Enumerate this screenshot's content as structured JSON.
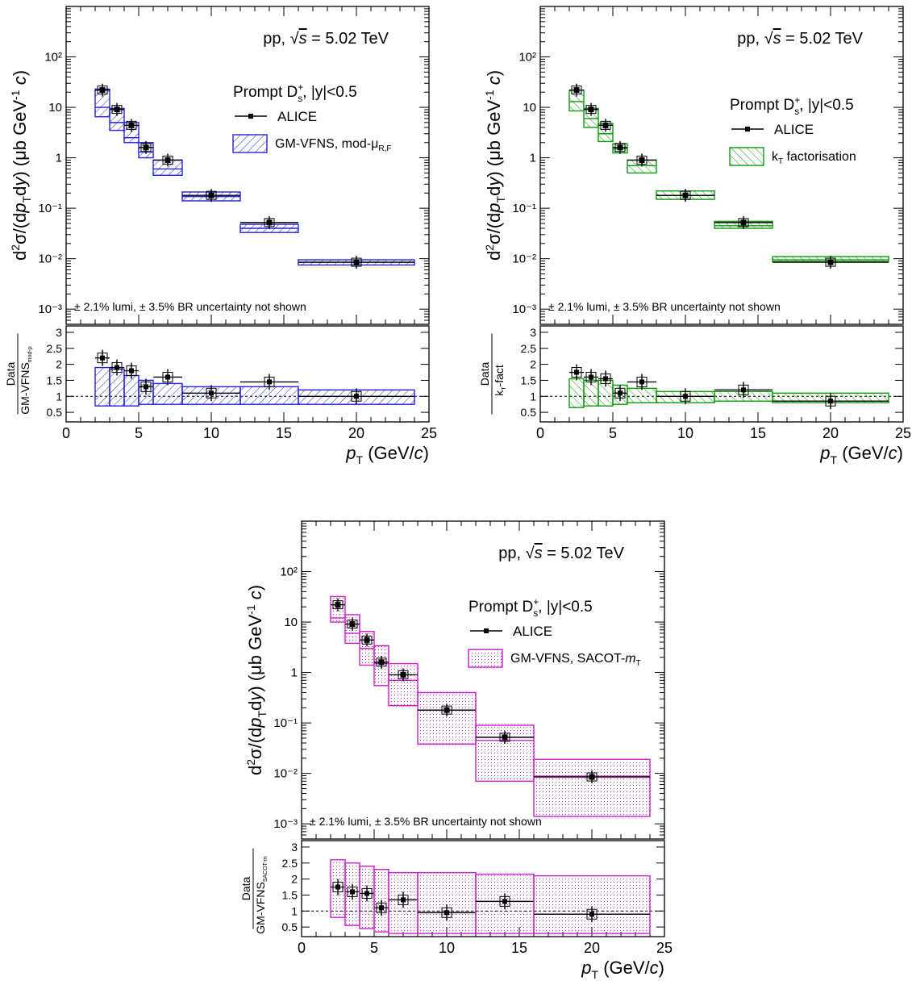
{
  "panels": [
    {
      "energy_label": "pp,",
      "energy_value": "= 5.02 TeV",
      "legend_title": "Prompt D",
      "legend_title_suffix": ", |y|<0.5",
      "data_label": "ALICE",
      "model_label": "GM-VFNS, mod-μ",
      "model_label_sub": "R,F",
      "note": "± 2.1% lumi, ± 3.5% BR uncertainty not shown",
      "ratio_num": "Data",
      "ratio_den": "GM-VFNS",
      "ratio_den_sub": "mod-μ",
      "color": "#2323d6",
      "fill": "hatch"
    },
    {
      "energy_label": "pp,",
      "energy_value": "= 5.02 TeV",
      "legend_title": "Prompt D",
      "legend_title_suffix": ", |y|<0.5",
      "data_label": "ALICE",
      "model_label": "k",
      "model_label_sub": "T",
      "model_label_rest": "factorisation",
      "note": "± 2.1% lumi, ± 3.5% BR uncertainty not shown",
      "ratio_num": "Data",
      "ratio_den": "k",
      "ratio_den_sub": "T",
      "ratio_den_rest": "-fact",
      "color": "#0e9a0e",
      "fill": "hatch2"
    },
    {
      "energy_label": "pp,",
      "energy_value": "= 5.02 TeV",
      "legend_title": "Prompt D",
      "legend_title_suffix": ", |y|<0.5",
      "data_label": "ALICE",
      "model_label": "GM-VFNS, SACOT-",
      "model_label_sub": "T",
      "model_label_rest": "m",
      "note": "± 2.1% lumi, ± 3.5% BR uncertainty not shown",
      "ratio_num": "Data",
      "ratio_den": "GM-VFNS",
      "ratio_den_sub": "SACOT-m",
      "color": "#cc1fcc",
      "fill": "dots"
    }
  ],
  "axes": {
    "ylabel": "d²σ/(dp_T dy) (μb GeV⁻¹ c)",
    "xlabel": "(GeV/c)",
    "xticks": [
      "0",
      "5",
      "10",
      "15",
      "20",
      "25"
    ],
    "yticks": [
      "10⁻³",
      "10⁻²",
      "10⁻¹",
      "1",
      "10",
      "10²"
    ],
    "ratio_ticks": [
      "0.5",
      "1",
      "1.5",
      "2",
      "2.5",
      "3"
    ]
  },
  "chart_data": [
    {
      "type": "bar",
      "title": "",
      "x_bins": [
        [
          2,
          3
        ],
        [
          3,
          4
        ],
        [
          4,
          5
        ],
        [
          5,
          6
        ],
        [
          6,
          8
        ],
        [
          8,
          12
        ],
        [
          12,
          16
        ],
        [
          16,
          24
        ]
      ],
      "series": [
        {
          "name": "ALICE",
          "values": [
            22,
            9.1,
            4.4,
            1.6,
            0.9,
            0.18,
            0.052,
            0.0085
          ]
        },
        {
          "name": "GM-VFNS, mod-μR,F",
          "low": [
            6.5,
            3.5,
            2.0,
            1.0,
            0.45,
            0.14,
            0.033,
            0.0075
          ],
          "high": [
            23,
            9.5,
            5.0,
            2.0,
            0.9,
            0.21,
            0.048,
            0.0095
          ],
          "central": [
            10,
            5,
            2.5,
            1.3,
            0.6,
            0.17,
            0.04,
            0.0085
          ]
        }
      ],
      "ratio": {
        "data": [
          2.2,
          1.9,
          1.8,
          1.3,
          1.6,
          1.1,
          1.45,
          1.0
        ],
        "model_low": [
          0.7,
          0.7,
          0.7,
          0.75,
          0.75,
          0.75,
          0.75,
          0.75
        ],
        "model_high": [
          1.9,
          1.85,
          1.65,
          1.5,
          1.4,
          1.3,
          1.3,
          1.2
        ]
      },
      "ylim": [
        0.0005,
        1000
      ],
      "xlim": [
        0,
        25
      ],
      "ratio_ylim": [
        0.2,
        3.2
      ],
      "ylog": true
    },
    {
      "type": "bar",
      "title": "",
      "x_bins": [
        [
          2,
          3
        ],
        [
          3,
          4
        ],
        [
          4,
          5
        ],
        [
          5,
          6
        ],
        [
          6,
          8
        ],
        [
          8,
          12
        ],
        [
          12,
          16
        ],
        [
          16,
          24
        ]
      ],
      "series": [
        {
          "name": "ALICE",
          "values": [
            22,
            9.1,
            4.4,
            1.6,
            0.9,
            0.18,
            0.052,
            0.0085
          ]
        },
        {
          "name": "kT factorisation",
          "low": [
            8.5,
            4,
            2.1,
            1.25,
            0.5,
            0.15,
            0.04,
            0.0088
          ],
          "high": [
            22,
            9.5,
            4.8,
            1.9,
            0.9,
            0.22,
            0.055,
            0.011
          ],
          "central": [
            13,
            6,
            3,
            1.5,
            0.7,
            0.18,
            0.045,
            0.0095
          ]
        }
      ],
      "ratio": {
        "data": [
          1.75,
          1.6,
          1.55,
          1.1,
          1.45,
          1.0,
          1.2,
          0.85
        ],
        "model_low": [
          0.65,
          0.7,
          0.7,
          0.75,
          0.8,
          0.8,
          0.85,
          0.8
        ],
        "model_high": [
          1.55,
          1.5,
          1.5,
          1.35,
          1.25,
          1.15,
          1.15,
          1.1
        ]
      },
      "ylim": [
        0.0005,
        1000
      ],
      "xlim": [
        0,
        25
      ],
      "ratio_ylim": [
        0.2,
        3.2
      ],
      "ylog": true
    },
    {
      "type": "bar",
      "title": "",
      "x_bins": [
        [
          2,
          3
        ],
        [
          3,
          4
        ],
        [
          4,
          5
        ],
        [
          5,
          6
        ],
        [
          6,
          8
        ],
        [
          8,
          12
        ],
        [
          12,
          16
        ],
        [
          16,
          24
        ]
      ],
      "series": [
        {
          "name": "ALICE",
          "values": [
            22,
            9.1,
            4.4,
            1.6,
            0.9,
            0.18,
            0.052,
            0.0085
          ]
        },
        {
          "name": "GM-VFNS, SACOT-mT",
          "low": [
            10,
            3.8,
            1.4,
            0.55,
            0.22,
            0.038,
            0.007,
            0.0014
          ],
          "high": [
            32,
            14,
            6.5,
            3.4,
            1.5,
            0.4,
            0.09,
            0.019
          ],
          "central": [
            12,
            6,
            3,
            1.5,
            0.7,
            0.18,
            0.045,
            0.0088
          ]
        }
      ],
      "ratio": {
        "data": [
          1.75,
          1.6,
          1.55,
          1.1,
          1.35,
          0.95,
          1.3,
          0.9
        ],
        "model_low": [
          0.8,
          0.55,
          0.45,
          0.35,
          0.3,
          0.3,
          0.3,
          0.3
        ],
        "model_high": [
          2.6,
          2.5,
          2.4,
          2.3,
          2.2,
          2.2,
          2.15,
          2.1
        ]
      },
      "ylim": [
        0.0005,
        1000
      ],
      "xlim": [
        0,
        25
      ],
      "ratio_ylim": [
        0.2,
        3.2
      ],
      "ylog": true
    }
  ]
}
